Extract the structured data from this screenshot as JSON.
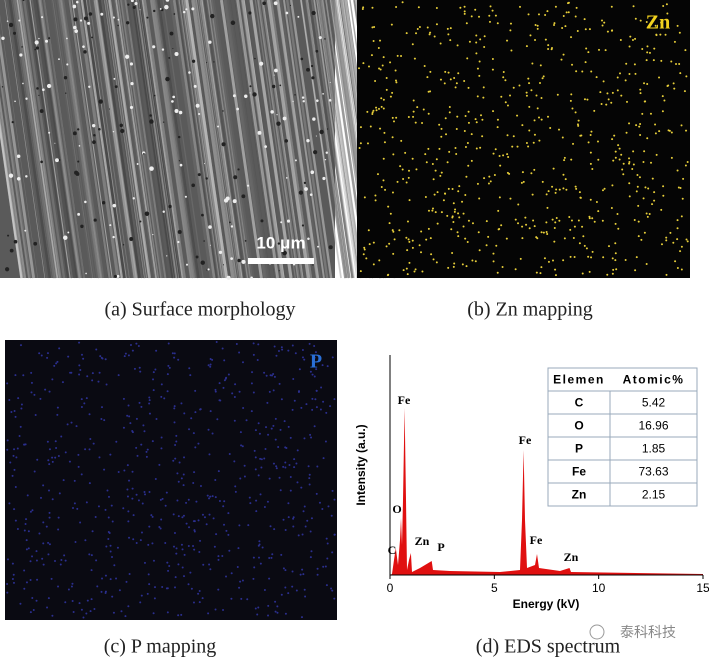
{
  "panels": {
    "a": {
      "caption": "(a) Surface morphology",
      "scale_bar": "10 μm"
    },
    "b": {
      "caption": "(b) Zn mapping",
      "label": "Zn"
    },
    "c": {
      "caption": "(c) P mapping",
      "label": "P"
    },
    "d": {
      "caption": "(d) EDS spectrum",
      "x_label": "Energy (kV)",
      "y_label": "Intensity (a.u.)",
      "xlim": [
        0,
        15
      ],
      "xticks": [
        0,
        5,
        10,
        15
      ],
      "peaks": [
        "Fe",
        "O",
        "C",
        "Zn",
        "P",
        "Fe",
        "Fe",
        "Zn"
      ],
      "table": {
        "header": [
          "Elemen",
          "Atomic%"
        ],
        "rows": [
          [
            "C",
            5.42
          ],
          [
            "O",
            16.96
          ],
          [
            "P",
            1.85
          ],
          [
            "Fe",
            73.63
          ],
          [
            "Zn",
            2.15
          ]
        ]
      }
    }
  },
  "watermark": "泰科科技"
}
